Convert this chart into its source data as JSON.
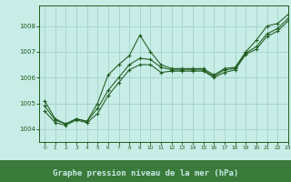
{
  "title": "Graphe pression niveau de la mer (hPa)",
  "background_color": "#c8ece6",
  "plot_bg_color": "#c8ece6",
  "label_bg_color": "#3a7a3a",
  "grid_color": "#a0d4cc",
  "line_color": "#1e5c1e",
  "text_color": "#1e5c1e",
  "label_text_color": "#c8ece6",
  "xlim": [
    -0.5,
    23
  ],
  "ylim": [
    1003.5,
    1008.8
  ],
  "yticks": [
    1004,
    1005,
    1006,
    1007,
    1008
  ],
  "xticks": [
    0,
    1,
    2,
    3,
    4,
    5,
    6,
    7,
    8,
    9,
    10,
    11,
    12,
    13,
    14,
    15,
    16,
    17,
    18,
    19,
    20,
    21,
    22,
    23
  ],
  "series": [
    [
      1005.1,
      1004.4,
      1004.2,
      1004.4,
      1004.3,
      1005.0,
      1006.1,
      1006.5,
      1006.85,
      1007.65,
      1007.0,
      1006.5,
      1006.35,
      1006.35,
      1006.35,
      1006.35,
      1006.1,
      1006.35,
      1006.4,
      1007.0,
      1007.45,
      1008.0,
      1008.1,
      1008.45
    ],
    [
      1004.9,
      1004.35,
      1004.2,
      1004.4,
      1004.3,
      1004.8,
      1005.5,
      1006.0,
      1006.5,
      1006.75,
      1006.7,
      1006.4,
      1006.3,
      1006.3,
      1006.3,
      1006.3,
      1006.05,
      1006.3,
      1006.35,
      1006.95,
      1007.2,
      1007.7,
      1007.9,
      1008.3
    ],
    [
      1004.7,
      1004.25,
      1004.15,
      1004.35,
      1004.25,
      1004.6,
      1005.3,
      1005.8,
      1006.3,
      1006.5,
      1006.5,
      1006.2,
      1006.25,
      1006.25,
      1006.25,
      1006.25,
      1006.0,
      1006.2,
      1006.3,
      1006.9,
      1007.1,
      1007.6,
      1007.8,
      1008.2
    ]
  ]
}
